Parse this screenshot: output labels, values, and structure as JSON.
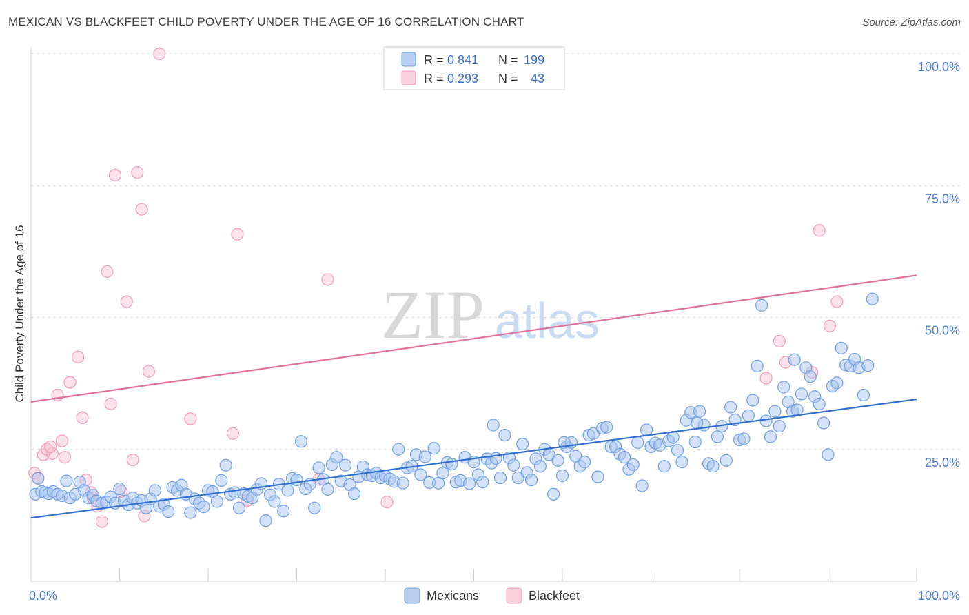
{
  "title": "MEXICAN VS BLACKFEET CHILD POVERTY UNDER THE AGE OF 16 CORRELATION CHART",
  "source": "Source: ZipAtlas.com",
  "watermark": {
    "zip": "ZIP",
    "atlas": "atlas"
  },
  "legend": {
    "rows": [
      {
        "r_label": "R =",
        "r_value": "0.841",
        "n_label": "N =",
        "n_value": "199"
      },
      {
        "r_label": "R =",
        "r_value": "0.293",
        "n_label": "N =",
        "n_value": "43"
      }
    ]
  },
  "chart_data": {
    "type": "scatter",
    "title": "MEXICAN VS BLACKFEET CHILD POVERTY UNDER THE AGE OF 16 CORRELATION CHART",
    "xlabel": "",
    "ylabel": "Child Poverty Under the Age of 16",
    "xlim": [
      0,
      100
    ],
    "ylim": [
      0,
      100
    ],
    "x_tick_labels": [
      "0.0%",
      "100.0%"
    ],
    "y_ticks": [
      25,
      50,
      75,
      100
    ],
    "y_tick_labels": [
      "25.0%",
      "50.0%",
      "75.0%",
      "100.0%"
    ],
    "grid": true,
    "legend_position": "top-center",
    "colors": {
      "mexicans": "#6f9ee6",
      "blackfeet": "#f29bb5",
      "mexicans_line": "#2f6fcf",
      "blackfeet_line": "#e0709a"
    },
    "series": [
      {
        "name": "Mexicans",
        "r": 0.841,
        "n": 199,
        "trend": {
          "x": [
            0,
            100
          ],
          "y": [
            12.0,
            34.5
          ]
        },
        "points": [
          [
            0.5,
            16.5
          ],
          [
            0.8,
            19.5
          ],
          [
            1.2,
            17.0
          ],
          [
            1.6,
            16.8
          ],
          [
            2.0,
            16.6
          ],
          [
            2.5,
            17.0
          ],
          [
            3.0,
            16.5
          ],
          [
            3.5,
            16.2
          ],
          [
            4.0,
            19.0
          ],
          [
            4.4,
            15.8
          ],
          [
            5.0,
            16.5
          ],
          [
            5.5,
            18.8
          ],
          [
            6.0,
            17.2
          ],
          [
            6.5,
            15.8
          ],
          [
            7.0,
            16.3
          ],
          [
            7.4,
            15.2
          ],
          [
            8.0,
            14.8
          ],
          [
            8.5,
            15.0
          ],
          [
            9.0,
            16.0
          ],
          [
            9.5,
            14.8
          ],
          [
            10.0,
            17.5
          ],
          [
            10.5,
            15.2
          ],
          [
            11.0,
            14.5
          ],
          [
            11.5,
            15.8
          ],
          [
            12.0,
            14.8
          ],
          [
            12.5,
            15.3
          ],
          [
            13.0,
            13.9
          ],
          [
            13.5,
            15.6
          ],
          [
            14.0,
            17.2
          ],
          [
            14.5,
            14.2
          ],
          [
            15.0,
            14.6
          ],
          [
            15.5,
            13.2
          ],
          [
            16.0,
            17.8
          ],
          [
            16.5,
            17.2
          ],
          [
            17.0,
            18.2
          ],
          [
            17.5,
            16.5
          ],
          [
            18.0,
            13.0
          ],
          [
            18.5,
            15.6
          ],
          [
            19.0,
            14.8
          ],
          [
            19.5,
            14.1
          ],
          [
            20.0,
            17.2
          ],
          [
            20.5,
            17.0
          ],
          [
            21.0,
            15.1
          ],
          [
            21.5,
            19.1
          ],
          [
            22.0,
            22.0
          ],
          [
            22.5,
            16.5
          ],
          [
            23.0,
            16.8
          ],
          [
            23.5,
            13.9
          ],
          [
            24.0,
            16.6
          ],
          [
            24.5,
            16.1
          ],
          [
            25.0,
            15.8
          ],
          [
            25.5,
            17.4
          ],
          [
            26.0,
            18.5
          ],
          [
            26.5,
            11.5
          ],
          [
            27.0,
            16.4
          ],
          [
            27.5,
            15.1
          ],
          [
            28.0,
            18.4
          ],
          [
            28.5,
            13.3
          ],
          [
            29.0,
            17.2
          ],
          [
            29.5,
            19.5
          ],
          [
            30.0,
            19.2
          ],
          [
            30.5,
            26.5
          ],
          [
            31.0,
            17.5
          ],
          [
            31.5,
            18.4
          ],
          [
            32.0,
            13.9
          ],
          [
            32.5,
            21.5
          ],
          [
            33.0,
            19.3
          ],
          [
            33.5,
            17.4
          ],
          [
            34.0,
            22.1
          ],
          [
            34.5,
            23.5
          ],
          [
            35.0,
            19.0
          ],
          [
            35.5,
            22.0
          ],
          [
            36.0,
            18.3
          ],
          [
            36.5,
            16.6
          ],
          [
            37.0,
            19.8
          ],
          [
            37.5,
            21.7
          ],
          [
            38.0,
            20.2
          ],
          [
            38.5,
            20.0
          ],
          [
            39.0,
            20.5
          ],
          [
            39.5,
            19.6
          ],
          [
            40.0,
            20.0
          ],
          [
            40.5,
            19.4
          ],
          [
            41.0,
            18.9
          ],
          [
            41.5,
            25.0
          ],
          [
            42.0,
            18.6
          ],
          [
            42.5,
            21.5
          ],
          [
            43.0,
            21.8
          ],
          [
            43.5,
            24.0
          ],
          [
            44.0,
            20.2
          ],
          [
            44.5,
            23.6
          ],
          [
            45.0,
            18.7
          ],
          [
            45.5,
            25.2
          ],
          [
            46.0,
            18.6
          ],
          [
            46.5,
            20.5
          ],
          [
            47.0,
            22.5
          ],
          [
            47.5,
            22.2
          ],
          [
            48.0,
            18.8
          ],
          [
            48.5,
            19.1
          ],
          [
            49.0,
            23.5
          ],
          [
            49.5,
            18.5
          ],
          [
            50.0,
            22.6
          ],
          [
            50.5,
            20.2
          ],
          [
            51.0,
            18.8
          ],
          [
            51.5,
            23.2
          ],
          [
            52.0,
            22.4
          ],
          [
            52.5,
            23.3
          ],
          [
            53.0,
            19.6
          ],
          [
            53.5,
            27.7
          ],
          [
            54.0,
            23.4
          ],
          [
            54.5,
            22.0
          ],
          [
            55.0,
            19.6
          ],
          [
            55.5,
            26.0
          ],
          [
            56.0,
            20.6
          ],
          [
            56.5,
            19.2
          ],
          [
            57.0,
            23.2
          ],
          [
            57.5,
            21.8
          ],
          [
            58.0,
            25.0
          ],
          [
            58.5,
            24.0
          ],
          [
            59.0,
            16.5
          ],
          [
            59.5,
            22.9
          ],
          [
            60.0,
            20.0
          ],
          [
            60.5,
            25.5
          ],
          [
            61.0,
            26.3
          ],
          [
            61.5,
            23.7
          ],
          [
            62.0,
            21.8
          ],
          [
            62.5,
            22.6
          ],
          [
            63.0,
            27.7
          ],
          [
            63.5,
            28.0
          ],
          [
            64.0,
            19.8
          ],
          [
            64.5,
            29.0
          ],
          [
            65.0,
            29.2
          ],
          [
            65.5,
            25.5
          ],
          [
            66.0,
            25.5
          ],
          [
            66.5,
            24.1
          ],
          [
            67.0,
            23.5
          ],
          [
            67.5,
            21.2
          ],
          [
            68.0,
            22.1
          ],
          [
            68.5,
            26.3
          ],
          [
            69.0,
            18.1
          ],
          [
            69.5,
            28.7
          ],
          [
            70.0,
            25.5
          ],
          [
            70.5,
            26.2
          ],
          [
            71.0,
            25.8
          ],
          [
            71.5,
            21.8
          ],
          [
            72.0,
            26.6
          ],
          [
            72.5,
            27.3
          ],
          [
            73.0,
            24.8
          ],
          [
            73.5,
            22.6
          ],
          [
            74.0,
            30.5
          ],
          [
            74.5,
            32.0
          ],
          [
            75.0,
            26.4
          ],
          [
            75.5,
            32.2
          ],
          [
            76.0,
            29.6
          ],
          [
            76.5,
            22.3
          ],
          [
            77.0,
            21.8
          ],
          [
            77.5,
            27.4
          ],
          [
            78.0,
            29.4
          ],
          [
            78.5,
            22.9
          ],
          [
            79.0,
            33.0
          ],
          [
            79.5,
            30.6
          ],
          [
            80.0,
            26.8
          ],
          [
            80.5,
            27.0
          ],
          [
            81.0,
            31.4
          ],
          [
            81.5,
            34.3
          ],
          [
            82.0,
            40.8
          ],
          [
            82.5,
            52.3
          ],
          [
            83.0,
            30.4
          ],
          [
            83.5,
            27.4
          ],
          [
            84.0,
            32.2
          ],
          [
            84.5,
            29.4
          ],
          [
            85.0,
            36.8
          ],
          [
            85.5,
            34.0
          ],
          [
            86.0,
            32.2
          ],
          [
            86.5,
            32.5
          ],
          [
            87.0,
            35.5
          ],
          [
            87.5,
            40.5
          ],
          [
            88.0,
            38.8
          ],
          [
            88.5,
            35.0
          ],
          [
            89.0,
            33.6
          ],
          [
            89.5,
            30.0
          ],
          [
            90.0,
            24.0
          ],
          [
            90.5,
            37.0
          ],
          [
            91.0,
            37.6
          ],
          [
            91.5,
            44.2
          ],
          [
            92.0,
            41.0
          ],
          [
            92.5,
            40.8
          ],
          [
            93.0,
            42.1
          ],
          [
            93.5,
            40.5
          ],
          [
            94.0,
            35.3
          ],
          [
            94.5,
            40.9
          ],
          [
            95.0,
            53.5
          ],
          [
            86.2,
            42.0
          ],
          [
            75.2,
            30.0
          ],
          [
            60.2,
            26.3
          ],
          [
            52.2,
            29.6
          ]
        ]
      },
      {
        "name": "Blackfeet",
        "r": 0.293,
        "n": 43,
        "trend": {
          "x": [
            0,
            100
          ],
          "y": [
            34.0,
            58.0
          ]
        },
        "points": [
          [
            0.8,
            19.6
          ],
          [
            1.4,
            24.0
          ],
          [
            1.8,
            25.0
          ],
          [
            2.4,
            24.2
          ],
          [
            3.0,
            35.3
          ],
          [
            3.5,
            26.6
          ],
          [
            3.8,
            23.5
          ],
          [
            4.4,
            37.7
          ],
          [
            5.3,
            42.5
          ],
          [
            5.8,
            31.0
          ],
          [
            6.2,
            19.2
          ],
          [
            6.8,
            16.8
          ],
          [
            7.5,
            14.2
          ],
          [
            8.0,
            11.3
          ],
          [
            8.6,
            58.7
          ],
          [
            9.0,
            33.6
          ],
          [
            9.5,
            77.0
          ],
          [
            10.2,
            17.0
          ],
          [
            10.8,
            53.0
          ],
          [
            11.5,
            23.0
          ],
          [
            12.0,
            77.5
          ],
          [
            12.5,
            70.5
          ],
          [
            12.8,
            12.4
          ],
          [
            13.3,
            39.8
          ],
          [
            14.5,
            100.0
          ],
          [
            18.0,
            30.8
          ],
          [
            22.8,
            28.0
          ],
          [
            23.3,
            65.8
          ],
          [
            24.4,
            15.3
          ],
          [
            32.5,
            19.3
          ],
          [
            33.5,
            57.2
          ],
          [
            40.2,
            15.0
          ],
          [
            46.0,
            100.0
          ],
          [
            83.0,
            38.5
          ],
          [
            84.5,
            45.5
          ],
          [
            85.2,
            41.5
          ],
          [
            88.2,
            39.6
          ],
          [
            89.0,
            66.5
          ],
          [
            90.2,
            48.4
          ],
          [
            91.0,
            53.0
          ],
          [
            0.4,
            20.5
          ],
          [
            7.0,
            15.8
          ],
          [
            2.2,
            25.5
          ]
        ]
      }
    ]
  },
  "bottom_legend": [
    "Mexicans",
    "Blackfeet"
  ]
}
